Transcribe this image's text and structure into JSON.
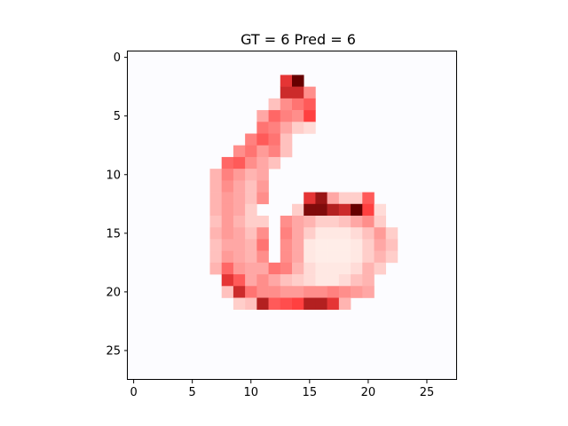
{
  "chart_data": {
    "type": "heatmap",
    "title": "GT = 6 Pred = 6",
    "xlabel": "",
    "ylabel": "",
    "grid_size": [
      28,
      28
    ],
    "xlim": [
      -0.5,
      27.5
    ],
    "ylim": [
      27.5,
      -0.5
    ],
    "x_ticks": [
      0,
      5,
      10,
      15,
      20,
      25
    ],
    "y_ticks": [
      0,
      5,
      10,
      15,
      20,
      25
    ],
    "grid": false,
    "colormap": "Reds",
    "colors": {
      "background": "#fcfcff",
      "frame": "#000000",
      "low": "#fff5f0",
      "mid": "#ff4040",
      "high": "#660000"
    },
    "cells": [
      [
        2,
        13,
        0.75
      ],
      [
        2,
        14,
        1.0
      ],
      [
        3,
        13,
        0.8
      ],
      [
        3,
        14,
        0.8
      ],
      [
        3,
        15,
        0.4
      ],
      [
        4,
        12,
        0.2
      ],
      [
        4,
        13,
        0.4
      ],
      [
        4,
        14,
        0.5
      ],
      [
        4,
        15,
        0.6
      ],
      [
        5,
        11,
        0.3
      ],
      [
        5,
        12,
        0.55
      ],
      [
        5,
        13,
        0.45
      ],
      [
        5,
        14,
        0.4
      ],
      [
        5,
        15,
        0.7
      ],
      [
        6,
        11,
        0.5
      ],
      [
        6,
        12,
        0.45
      ],
      [
        6,
        13,
        0.3
      ],
      [
        6,
        14,
        0.15
      ],
      [
        6,
        15,
        0.1
      ],
      [
        7,
        10,
        0.45
      ],
      [
        7,
        11,
        0.6
      ],
      [
        7,
        12,
        0.5
      ],
      [
        7,
        13,
        0.2
      ],
      [
        8,
        9,
        0.4
      ],
      [
        8,
        10,
        0.5
      ],
      [
        8,
        11,
        0.35
      ],
      [
        8,
        12,
        0.45
      ],
      [
        8,
        13,
        0.2
      ],
      [
        9,
        8,
        0.55
      ],
      [
        9,
        9,
        0.6
      ],
      [
        9,
        10,
        0.4
      ],
      [
        9,
        11,
        0.3
      ],
      [
        9,
        12,
        0.2
      ],
      [
        10,
        7,
        0.25
      ],
      [
        10,
        8,
        0.45
      ],
      [
        10,
        9,
        0.35
      ],
      [
        10,
        10,
        0.25
      ],
      [
        10,
        11,
        0.3
      ],
      [
        11,
        7,
        0.25
      ],
      [
        11,
        8,
        0.4
      ],
      [
        11,
        9,
        0.3
      ],
      [
        11,
        10,
        0.2
      ],
      [
        11,
        11,
        0.35
      ],
      [
        12,
        7,
        0.25
      ],
      [
        12,
        8,
        0.35
      ],
      [
        12,
        9,
        0.3
      ],
      [
        12,
        10,
        0.2
      ],
      [
        12,
        11,
        0.4
      ],
      [
        12,
        15,
        0.75
      ],
      [
        12,
        16,
        0.9
      ],
      [
        12,
        17,
        0.3
      ],
      [
        12,
        18,
        0.15
      ],
      [
        12,
        19,
        0.15
      ],
      [
        12,
        20,
        0.6
      ],
      [
        13,
        7,
        0.25
      ],
      [
        13,
        8,
        0.35
      ],
      [
        13,
        9,
        0.3
      ],
      [
        13,
        10,
        0.15
      ],
      [
        13,
        14,
        0.15
      ],
      [
        13,
        15,
        0.95
      ],
      [
        13,
        16,
        0.95
      ],
      [
        13,
        17,
        0.85
      ],
      [
        13,
        18,
        0.8
      ],
      [
        13,
        19,
        1.0
      ],
      [
        13,
        20,
        0.7
      ],
      [
        13,
        21,
        0.1
      ],
      [
        14,
        7,
        0.2
      ],
      [
        14,
        8,
        0.35
      ],
      [
        14,
        9,
        0.25
      ],
      [
        14,
        10,
        0.15
      ],
      [
        14,
        11,
        0.15
      ],
      [
        14,
        13,
        0.4
      ],
      [
        14,
        14,
        0.3
      ],
      [
        14,
        15,
        0.25
      ],
      [
        14,
        16,
        0.15
      ],
      [
        14,
        17,
        0.15
      ],
      [
        14,
        18,
        0.2
      ],
      [
        14,
        19,
        0.3
      ],
      [
        14,
        20,
        0.4
      ],
      [
        14,
        21,
        0.15
      ],
      [
        15,
        7,
        0.25
      ],
      [
        15,
        8,
        0.35
      ],
      [
        15,
        9,
        0.3
      ],
      [
        15,
        10,
        0.2
      ],
      [
        15,
        11,
        0.4
      ],
      [
        15,
        13,
        0.45
      ],
      [
        15,
        14,
        0.3
      ],
      [
        15,
        15,
        0.15
      ],
      [
        15,
        16,
        0.05
      ],
      [
        15,
        17,
        0.05
      ],
      [
        15,
        18,
        0.05
      ],
      [
        15,
        19,
        0.1
      ],
      [
        15,
        20,
        0.2
      ],
      [
        15,
        21,
        0.35
      ],
      [
        15,
        22,
        0.15
      ],
      [
        16,
        7,
        0.2
      ],
      [
        16,
        8,
        0.3
      ],
      [
        16,
        9,
        0.3
      ],
      [
        16,
        10,
        0.25
      ],
      [
        16,
        11,
        0.5
      ],
      [
        16,
        13,
        0.4
      ],
      [
        16,
        14,
        0.3
      ],
      [
        16,
        15,
        0.05
      ],
      [
        16,
        16,
        0.03
      ],
      [
        16,
        17,
        0.03
      ],
      [
        16,
        18,
        0.03
      ],
      [
        16,
        19,
        0.05
      ],
      [
        16,
        20,
        0.15
      ],
      [
        16,
        21,
        0.3
      ],
      [
        16,
        22,
        0.2
      ],
      [
        17,
        7,
        0.2
      ],
      [
        17,
        8,
        0.35
      ],
      [
        17,
        9,
        0.3
      ],
      [
        17,
        10,
        0.25
      ],
      [
        17,
        11,
        0.4
      ],
      [
        17,
        13,
        0.4
      ],
      [
        17,
        14,
        0.3
      ],
      [
        17,
        15,
        0.05
      ],
      [
        17,
        16,
        0.03
      ],
      [
        17,
        17,
        0.03
      ],
      [
        17,
        18,
        0.03
      ],
      [
        17,
        19,
        0.05
      ],
      [
        17,
        20,
        0.15
      ],
      [
        17,
        21,
        0.25
      ],
      [
        17,
        22,
        0.15
      ],
      [
        18,
        7,
        0.25
      ],
      [
        18,
        8,
        0.55
      ],
      [
        18,
        9,
        0.35
      ],
      [
        18,
        10,
        0.3
      ],
      [
        18,
        11,
        0.3
      ],
      [
        18,
        12,
        0.5
      ],
      [
        18,
        13,
        0.45
      ],
      [
        18,
        14,
        0.25
      ],
      [
        18,
        15,
        0.1
      ],
      [
        18,
        16,
        0.05
      ],
      [
        18,
        17,
        0.05
      ],
      [
        18,
        18,
        0.05
      ],
      [
        18,
        19,
        0.1
      ],
      [
        18,
        20,
        0.25
      ],
      [
        18,
        21,
        0.15
      ],
      [
        19,
        8,
        0.75
      ],
      [
        19,
        9,
        0.6
      ],
      [
        19,
        10,
        0.3
      ],
      [
        19,
        11,
        0.4
      ],
      [
        19,
        12,
        0.3
      ],
      [
        19,
        13,
        0.2
      ],
      [
        19,
        14,
        0.15
      ],
      [
        19,
        15,
        0.1
      ],
      [
        19,
        16,
        0.05
      ],
      [
        19,
        17,
        0.05
      ],
      [
        19,
        18,
        0.1
      ],
      [
        19,
        19,
        0.2
      ],
      [
        19,
        20,
        0.25
      ],
      [
        20,
        8,
        0.2
      ],
      [
        20,
        9,
        0.8
      ],
      [
        20,
        10,
        0.5
      ],
      [
        20,
        11,
        0.4
      ],
      [
        20,
        12,
        0.4
      ],
      [
        20,
        13,
        0.35
      ],
      [
        20,
        14,
        0.35
      ],
      [
        20,
        15,
        0.4
      ],
      [
        20,
        16,
        0.4
      ],
      [
        20,
        17,
        0.45
      ],
      [
        20,
        18,
        0.4
      ],
      [
        20,
        19,
        0.35
      ],
      [
        20,
        20,
        0.3
      ],
      [
        21,
        9,
        0.15
      ],
      [
        21,
        10,
        0.2
      ],
      [
        21,
        11,
        0.85
      ],
      [
        21,
        12,
        0.6
      ],
      [
        21,
        13,
        0.65
      ],
      [
        21,
        14,
        0.7
      ],
      [
        21,
        15,
        0.85
      ],
      [
        21,
        16,
        0.85
      ],
      [
        21,
        17,
        0.75
      ],
      [
        21,
        18,
        0.25
      ]
    ]
  }
}
